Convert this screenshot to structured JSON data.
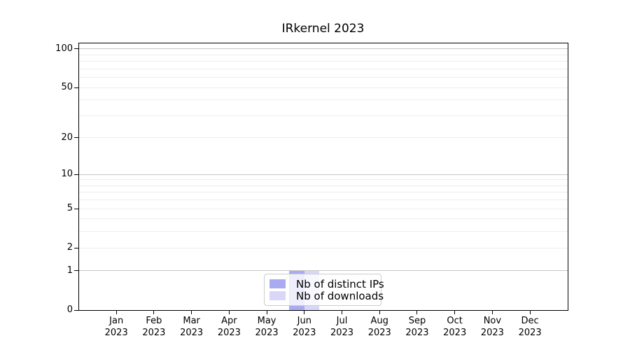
{
  "figure": {
    "background": "#ffffff"
  },
  "chart_data": {
    "type": "bar",
    "title": "IRkernel 2023",
    "categories": [
      "Jan 2023",
      "Feb 2023",
      "Mar 2023",
      "Apr 2023",
      "May 2023",
      "Jun 2023",
      "Jul 2023",
      "Aug 2023",
      "Sep 2023",
      "Oct 2023",
      "Nov 2023",
      "Dec 2023"
    ],
    "series": [
      {
        "name": "Nb of distinct IPs",
        "color": "#aaaaf2",
        "values": [
          0,
          0,
          0,
          0,
          0,
          1,
          0,
          0,
          0,
          0,
          0,
          0
        ]
      },
      {
        "name": "Nb of downloads",
        "color": "#d8d8f6",
        "values": [
          0,
          0,
          0,
          0,
          0,
          1,
          0,
          0,
          0,
          0,
          0,
          0
        ]
      }
    ],
    "xlabel": "",
    "ylabel": "",
    "y_scale": "log1p",
    "ylim": [
      0,
      112
    ],
    "y_ticks": [
      0,
      1,
      2,
      5,
      10,
      20,
      50,
      100
    ],
    "y_major_gridlines": [
      1,
      10,
      100
    ],
    "y_minor_gridlines": [
      2,
      3,
      4,
      5,
      6,
      7,
      8,
      9,
      20,
      30,
      40,
      50,
      60,
      70,
      80,
      90
    ],
    "grid": {
      "on": true,
      "major_color": "#c6c6c6",
      "minor_color": "#ededed"
    },
    "legend": {
      "position": "lower center",
      "entries": [
        "Nb of distinct IPs",
        "Nb of downloads"
      ]
    }
  }
}
